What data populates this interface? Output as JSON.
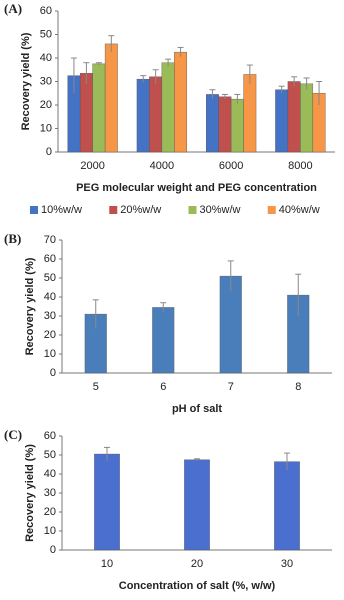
{
  "chart_data": [
    {
      "type": "bar",
      "panel_label": "(A)",
      "y_label": "Recovery yield (%)",
      "x_label": "PEG molecular weight and PEG concentration",
      "categories": [
        "2000",
        "4000",
        "6000",
        "8000"
      ],
      "series": [
        {
          "name": "10%w/w",
          "color": "#4472c4",
          "values": [
            32.5,
            31,
            24.5,
            26.5
          ],
          "errors": [
            7.5,
            1.5,
            2,
            1.5
          ]
        },
        {
          "name": "20%w/w",
          "color": "#c0504d",
          "values": [
            33.5,
            32,
            23.5,
            30
          ],
          "errors": [
            4.5,
            3,
            1,
            2
          ]
        },
        {
          "name": "30%w/w",
          "color": "#9bbb59",
          "values": [
            37.5,
            38,
            22.5,
            29
          ],
          "errors": [
            0.5,
            1.5,
            2,
            2.5
          ]
        },
        {
          "name": "40%w/w",
          "color": "#f79646",
          "values": [
            46,
            42.5,
            33,
            25
          ],
          "errors": [
            3.5,
            2,
            4,
            5
          ]
        }
      ],
      "ylim": [
        0,
        60
      ],
      "yticks": [
        0,
        10,
        20,
        30,
        40,
        50,
        60
      ],
      "grid": false,
      "legend": "bottom"
    },
    {
      "type": "bar",
      "panel_label": "(B)",
      "y_label": "Recovery yield (%)",
      "x_label": "pH of salt",
      "categories": [
        "5",
        "6",
        "7",
        "8"
      ],
      "color": "#4a7ebb",
      "values": [
        31,
        34.5,
        51,
        41
      ],
      "errors": [
        7.5,
        2.5,
        8,
        11
      ],
      "ylim": [
        0,
        70
      ],
      "yticks": [
        0,
        10,
        20,
        30,
        40,
        50,
        60,
        70
      ],
      "grid": false
    },
    {
      "type": "bar",
      "panel_label": "(C)",
      "y_label": "Recovery yield (%)",
      "x_label": "Concentration of salt (%, w/w)",
      "categories": [
        "10",
        "20",
        "30"
      ],
      "color": "#4a6fcf",
      "values": [
        50.5,
        47.5,
        46.5
      ],
      "errors": [
        3.5,
        0.5,
        4.5
      ],
      "ylim": [
        0,
        60
      ],
      "yticks": [
        0,
        10,
        20,
        30,
        40,
        50,
        60
      ],
      "grid": false
    }
  ]
}
